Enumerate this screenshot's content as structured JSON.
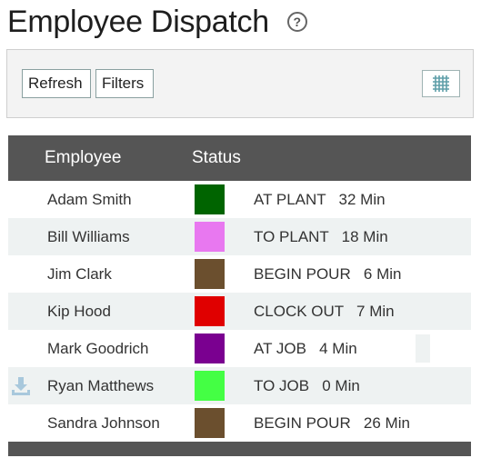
{
  "header": {
    "title": "Employee Dispatch",
    "help_glyph": "?"
  },
  "toolbar": {
    "refresh_label": "Refresh",
    "filters_label": "Filters",
    "grid_icon": "grid-icon"
  },
  "table": {
    "columns": [
      "Employee",
      "Status"
    ],
    "rows": [
      {
        "name": "Adam Smith",
        "color": "#006400",
        "status": "AT PLANT   32 Min"
      },
      {
        "name": "Bill Williams",
        "color": "#e878f0",
        "status": "TO PLANT   18 Min"
      },
      {
        "name": "Jim Clark",
        "color": "#6b4f2e",
        "status": "BEGIN POUR   6 Min"
      },
      {
        "name": "Kip Hood",
        "color": "#e00000",
        "status": "CLOCK OUT   7 Min"
      },
      {
        "name": "Mark Goodrich",
        "color": "#7a0090",
        "status": "AT JOB   4 Min"
      },
      {
        "name": "Ryan Matthews",
        "color": "#44ff44",
        "status": "TO JOB   0 Min"
      },
      {
        "name": "Sandra Johnson",
        "color": "#6b4f2e",
        "status": "BEGIN POUR   26 Min"
      }
    ]
  },
  "icons": {
    "row_download": "download-icon",
    "help": "help-icon"
  }
}
